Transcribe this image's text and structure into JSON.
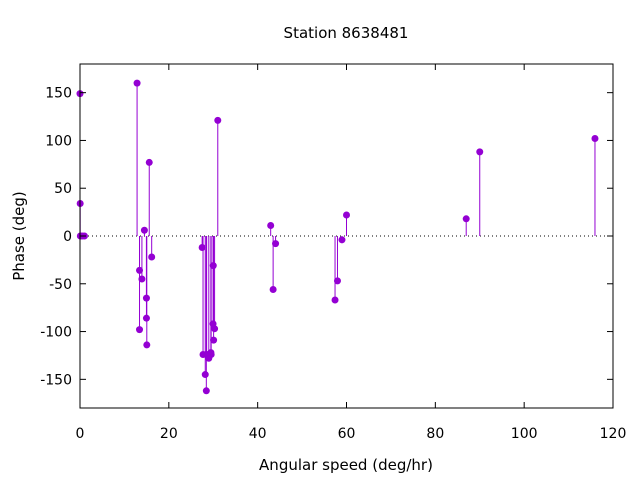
{
  "chart_data": {
    "type": "stem",
    "title": "Station 8638481",
    "xlabel": "Angular speed (deg/hr)",
    "ylabel": "Phase (deg)",
    "xlim": [
      0,
      120
    ],
    "ylim": [
      -180,
      180
    ],
    "xticks": [
      0,
      20,
      40,
      60,
      80,
      100,
      120
    ],
    "yticks": [
      -150,
      -100,
      -50,
      0,
      50,
      100,
      150
    ],
    "zero_line": "dotted",
    "grid": false,
    "color": "#9400d3",
    "points": [
      {
        "x": 0.0,
        "y": 149
      },
      {
        "x": 0.04,
        "y": 34
      },
      {
        "x": 0.08,
        "y": 0
      },
      {
        "x": 0.5,
        "y": 0
      },
      {
        "x": 1.0,
        "y": 0
      },
      {
        "x": 12.85,
        "y": 160
      },
      {
        "x": 13.4,
        "y": -36
      },
      {
        "x": 13.4,
        "y": -98
      },
      {
        "x": 13.94,
        "y": -45
      },
      {
        "x": 14.5,
        "y": 6
      },
      {
        "x": 14.96,
        "y": -65
      },
      {
        "x": 14.96,
        "y": -86
      },
      {
        "x": 15.04,
        "y": -114
      },
      {
        "x": 15.59,
        "y": 77
      },
      {
        "x": 16.14,
        "y": -22
      },
      {
        "x": 27.5,
        "y": -12
      },
      {
        "x": 27.7,
        "y": -124
      },
      {
        "x": 28.2,
        "y": -145
      },
      {
        "x": 28.44,
        "y": -162
      },
      {
        "x": 28.51,
        "y": -124
      },
      {
        "x": 29.0,
        "y": -128
      },
      {
        "x": 29.46,
        "y": -122
      },
      {
        "x": 29.53,
        "y": -124
      },
      {
        "x": 29.96,
        "y": -92
      },
      {
        "x": 30.0,
        "y": -31
      },
      {
        "x": 30.08,
        "y": -109
      },
      {
        "x": 30.3,
        "y": -97
      },
      {
        "x": 31.02,
        "y": 121
      },
      {
        "x": 42.93,
        "y": 11
      },
      {
        "x": 43.48,
        "y": -56
      },
      {
        "x": 44.03,
        "y": -8
      },
      {
        "x": 57.42,
        "y": -67
      },
      {
        "x": 57.97,
        "y": -47
      },
      {
        "x": 58.98,
        "y": -4
      },
      {
        "x": 60.0,
        "y": 22
      },
      {
        "x": 86.95,
        "y": 18
      },
      {
        "x": 90.0,
        "y": 88
      },
      {
        "x": 115.94,
        "y": 102
      }
    ]
  }
}
